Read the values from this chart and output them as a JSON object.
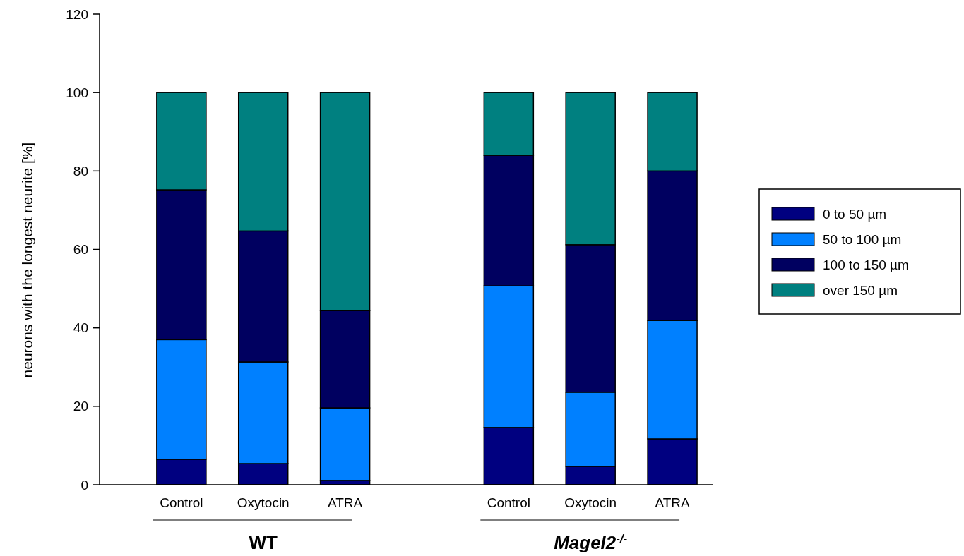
{
  "chart_data": {
    "type": "bar",
    "stacked": true,
    "ylabel": "neurons with the longest neurite [%]",
    "categories": [
      "Control",
      "Oxytocin",
      "ATRA",
      null,
      "Control",
      "Oxytocin",
      "ATRA"
    ],
    "series": [
      {
        "name": "0 to 50 µm",
        "color": "#000080",
        "values": [
          6.5,
          5.4,
          1.1,
          null,
          14.6,
          4.7,
          11.7
        ]
      },
      {
        "name": "50 to 100 µm",
        "color": "#0080ff",
        "values": [
          30.5,
          25.9,
          18.5,
          null,
          36.1,
          18.9,
          30.2
        ]
      },
      {
        "name": "100 to 150 µm",
        "color": "#000060",
        "values": [
          38.2,
          33.4,
          24.8,
          null,
          33.3,
          37.6,
          38.1
        ]
      },
      {
        "name": "over 150 µm",
        "color": "#008080",
        "values": [
          24.8,
          35.3,
          55.6,
          null,
          16,
          38.8,
          20
        ]
      }
    ],
    "ylim": [
      0,
      120
    ],
    "yticks": [
      0,
      20,
      40,
      60,
      80,
      100,
      120
    ],
    "grid": false,
    "legend": "right",
    "annotations": [
      "WT",
      "Magel2$^{-/-}$"
    ]
  }
}
